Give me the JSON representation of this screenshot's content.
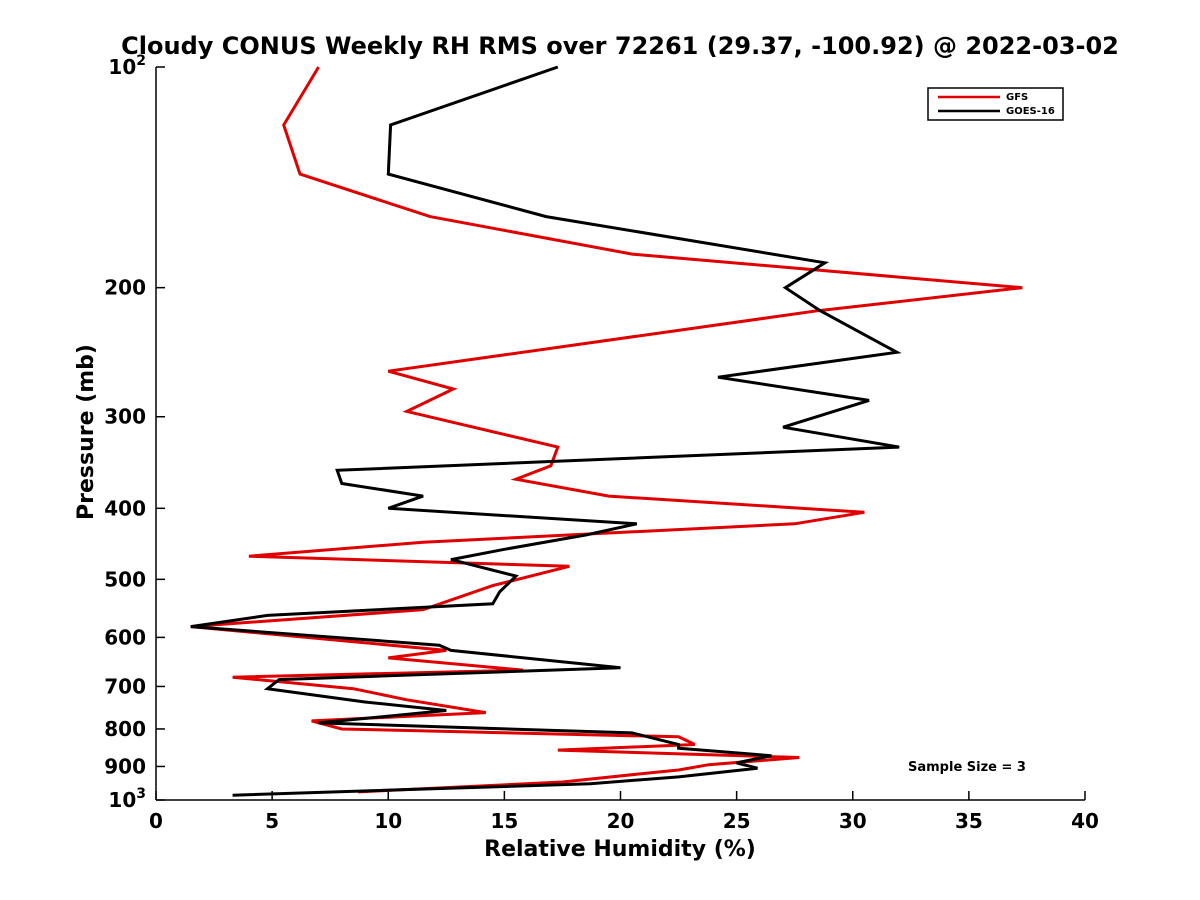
{
  "chart_data": {
    "type": "line",
    "title": "Cloudy CONUS Weekly RH RMS over 72261 (29.37, -100.92) @ 2022-03-02",
    "xlabel": "Relative Humidity (%)",
    "ylabel": "Pressure (mb)",
    "xlim": [
      0,
      40
    ],
    "ylim": [
      100,
      1000
    ],
    "y_scale": "log",
    "y_reversed": true,
    "x_ticks": [
      "0",
      "5",
      "10",
      "15",
      "20",
      "25",
      "30",
      "35",
      "40"
    ],
    "y_ticks": [
      {
        "base": "10",
        "exp": "2"
      },
      {
        "label": "200"
      },
      {
        "label": "300"
      },
      {
        "label": "400"
      },
      {
        "label": "500"
      },
      {
        "label": "600"
      },
      {
        "label": "700"
      },
      {
        "label": "800"
      },
      {
        "label": "900"
      },
      {
        "base": "10",
        "exp": "3"
      }
    ],
    "legend_position": "top-right",
    "grid": false,
    "annotation": "Sample Size = 3",
    "series": [
      {
        "name": "GFS",
        "color": "#e00000",
        "points": [
          [
            7.0,
            100
          ],
          [
            5.5,
            120
          ],
          [
            6.2,
            140
          ],
          [
            11.8,
            160
          ],
          [
            20.5,
            180
          ],
          [
            37.3,
            200
          ],
          [
            28.5,
            215
          ],
          [
            10.0,
            260
          ],
          [
            12.8,
            275
          ],
          [
            10.8,
            295
          ],
          [
            17.3,
            330
          ],
          [
            17.0,
            350
          ],
          [
            15.5,
            365
          ],
          [
            19.5,
            385
          ],
          [
            30.5,
            405
          ],
          [
            27.5,
            420
          ],
          [
            11.5,
            445
          ],
          [
            4.0,
            465
          ],
          [
            17.8,
            480
          ],
          [
            14.5,
            510
          ],
          [
            11.5,
            550
          ],
          [
            1.5,
            580
          ],
          [
            12.5,
            625
          ],
          [
            10.0,
            640
          ],
          [
            15.8,
            665
          ],
          [
            3.3,
            680
          ],
          [
            8.5,
            705
          ],
          [
            10.8,
            730
          ],
          [
            14.2,
            760
          ],
          [
            6.7,
            780
          ],
          [
            8.0,
            800
          ],
          [
            22.5,
            820
          ],
          [
            23.2,
            840
          ],
          [
            17.3,
            855
          ],
          [
            27.7,
            875
          ],
          [
            23.8,
            895
          ],
          [
            22.5,
            910
          ],
          [
            21.0,
            920
          ],
          [
            17.5,
            945
          ],
          [
            8.7,
            975
          ]
        ]
      },
      {
        "name": "GOES-16",
        "color": "#000000",
        "points": [
          [
            17.3,
            100
          ],
          [
            10.1,
            120
          ],
          [
            10.0,
            140
          ],
          [
            16.8,
            160
          ],
          [
            28.8,
            185
          ],
          [
            27.1,
            200
          ],
          [
            28.6,
            215
          ],
          [
            31.9,
            245
          ],
          [
            24.2,
            265
          ],
          [
            30.7,
            285
          ],
          [
            27.0,
            310
          ],
          [
            32.0,
            330
          ],
          [
            7.8,
            355
          ],
          [
            8.0,
            370
          ],
          [
            11.5,
            385
          ],
          [
            10.0,
            400
          ],
          [
            20.7,
            420
          ],
          [
            18.5,
            435
          ],
          [
            15.0,
            455
          ],
          [
            12.7,
            470
          ],
          [
            15.5,
            495
          ],
          [
            14.8,
            520
          ],
          [
            14.5,
            540
          ],
          [
            4.8,
            560
          ],
          [
            1.5,
            580
          ],
          [
            12.2,
            615
          ],
          [
            12.7,
            625
          ],
          [
            20.0,
            660
          ],
          [
            5.3,
            685
          ],
          [
            4.8,
            705
          ],
          [
            9.0,
            735
          ],
          [
            12.5,
            755
          ],
          [
            7.0,
            785
          ],
          [
            20.5,
            810
          ],
          [
            22.5,
            840
          ],
          [
            22.5,
            850
          ],
          [
            26.5,
            870
          ],
          [
            25.0,
            890
          ],
          [
            25.9,
            905
          ],
          [
            22.5,
            930
          ],
          [
            18.7,
            950
          ],
          [
            3.3,
            985
          ]
        ]
      }
    ]
  }
}
